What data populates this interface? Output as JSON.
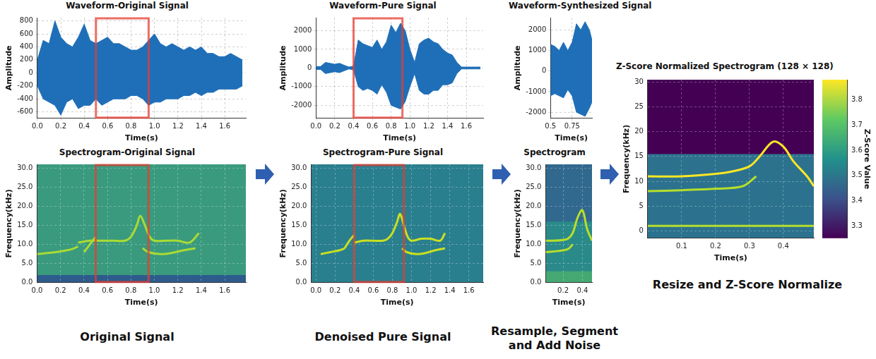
{
  "chart_data": [
    {
      "type": "waveform",
      "title": "Waveform-Original Signal",
      "xlabel": "Time(s)",
      "ylabel": "Amplitude",
      "x": [
        0,
        0.05,
        0.1,
        0.15,
        0.2,
        0.25,
        0.3,
        0.35,
        0.4,
        0.45,
        0.5,
        0.55,
        0.6,
        0.65,
        0.7,
        0.75,
        0.8,
        0.85,
        0.9,
        0.95,
        1,
        1.05,
        1.1,
        1.15,
        1.2,
        1.25,
        1.3,
        1.35,
        1.4,
        1.45,
        1.5,
        1.55,
        1.6,
        1.65,
        1.7,
        1.75
      ],
      "series": [
        {
          "values": [
            200,
            500,
            450,
            800,
            550,
            450,
            400,
            550,
            750,
            500,
            450,
            500,
            550,
            450,
            450,
            400,
            350,
            350,
            400,
            500,
            600,
            450,
            400,
            450,
            400,
            350,
            400,
            350,
            400,
            300,
            300,
            250,
            250,
            300,
            250,
            200
          ]
        },
        {
          "values": [
            -200,
            -400,
            -450,
            -500,
            -650,
            -450,
            -400,
            -550,
            -500,
            -500,
            -400,
            -500,
            -450,
            -400,
            -400,
            -400,
            -350,
            -350,
            -400,
            -500,
            -450,
            -450,
            -400,
            -400,
            -400,
            -350,
            -350,
            -300,
            -350,
            -300,
            -300,
            -250,
            -250,
            -250,
            -250,
            -200
          ]
        }
      ],
      "color": "#1f6fb8",
      "xlim": [
        0,
        1.78
      ],
      "xticks": [
        {
          "value": 0,
          "label": "0.0"
        },
        0.2,
        0.4,
        0.6,
        0.8,
        {
          "value": 1,
          "label": "1.0"
        },
        1.2,
        1.4,
        1.6
      ],
      "ylim": [
        -700,
        850
      ],
      "yticks": [
        -600,
        -400,
        -200,
        0,
        200,
        400,
        600,
        800
      ],
      "grid": true,
      "highlight": [
        0.5,
        0.95
      ]
    },
    {
      "type": "spectrogram",
      "title": "Spectrogram-Original Signal",
      "xlabel": "Time(s)",
      "ylabel": "Frequency(kHz)",
      "color": "#3a9a7e",
      "bands": [
        {
          "from": 0,
          "to": 2,
          "color": "#2d5b8c"
        }
      ],
      "series": [
        {
          "color": "#a8db34",
          "x": [
            0,
            0.1,
            0.2,
            0.3,
            0.35
          ],
          "values": [
            7.5,
            7.8,
            8.2,
            8.8,
            9.5
          ]
        },
        {
          "color": "#a8db34",
          "x": [
            0.35,
            0.45,
            0.55,
            0.65,
            0.75,
            0.8,
            0.85,
            0.88,
            0.92,
            0.96,
            1,
            1.1,
            1.2,
            1.3,
            1.38
          ],
          "values": [
            10.5,
            11,
            11,
            11,
            11,
            12,
            15,
            17.5,
            15,
            12,
            11,
            11,
            11,
            10.5,
            13
          ]
        },
        {
          "color": "#a8db34",
          "x": [
            0.4,
            0.45,
            0.5
          ],
          "values": [
            8,
            10,
            12
          ]
        },
        {
          "color": "#a8db34",
          "x": [
            0.9,
            0.95,
            1.05,
            1.15,
            1.25,
            1.35
          ],
          "values": [
            9,
            8,
            7.5,
            7.8,
            8.5,
            9
          ]
        }
      ],
      "xlim": [
        0,
        1.78
      ],
      "xticks": [
        {
          "value": 0,
          "label": "0.0"
        },
        0.2,
        0.4,
        0.6,
        0.8,
        {
          "value": 1,
          "label": "1.0"
        },
        1.2,
        1.4,
        1.6
      ],
      "ylim": [
        0,
        31
      ],
      "yticks": [
        {
          "value": 0,
          "label": "0.0"
        },
        {
          "value": 5,
          "label": "5.0"
        },
        {
          "value": 10,
          "label": "10.0"
        },
        {
          "value": 15,
          "label": "15.0"
        },
        {
          "value": 20,
          "label": "20.0"
        },
        {
          "value": 25,
          "label": "25.0"
        },
        {
          "value": 30,
          "label": "30.0"
        }
      ],
      "grid": true,
      "highlight": [
        0.5,
        0.95
      ]
    },
    {
      "type": "waveform",
      "title": "Waveform-Pure Signal",
      "xlabel": "Time(s)",
      "ylabel": "Amplitude",
      "x": [
        0,
        0.05,
        0.1,
        0.15,
        0.2,
        0.25,
        0.3,
        0.35,
        0.4,
        0.45,
        0.5,
        0.55,
        0.6,
        0.65,
        0.7,
        0.75,
        0.8,
        0.85,
        0.9,
        0.95,
        1,
        1.05,
        1.1,
        1.15,
        1.2,
        1.25,
        1.3,
        1.35,
        1.4,
        1.45,
        1.5,
        1.55,
        1.6,
        1.65,
        1.7,
        1.75
      ],
      "series": [
        {
          "values": [
            80,
            80,
            300,
            250,
            200,
            250,
            150,
            50,
            100,
            1500,
            1300,
            1200,
            1100,
            1500,
            1000,
            1400,
            2300,
            1900,
            2400,
            2000,
            1000,
            300,
            1300,
            1500,
            1600,
            1400,
            1300,
            1000,
            800,
            700,
            300,
            50,
            50,
            50,
            50,
            50
          ]
        },
        {
          "values": [
            -80,
            -80,
            -300,
            -250,
            -200,
            -250,
            -150,
            -50,
            -100,
            -1000,
            -1200,
            -1100,
            -1200,
            -1400,
            -900,
            -1300,
            -2000,
            -2100,
            -2200,
            -1800,
            -1000,
            -300,
            -1200,
            -1400,
            -1400,
            -1200,
            -1200,
            -900,
            -900,
            -800,
            -300,
            -50,
            -50,
            -50,
            -50,
            -50
          ]
        }
      ],
      "color": "#1f6fb8",
      "xlim": [
        0,
        1.78
      ],
      "xticks": [
        {
          "value": 0,
          "label": "0.0"
        },
        0.2,
        0.4,
        0.6,
        0.8,
        {
          "value": 1,
          "label": "1.0"
        },
        1.2,
        1.4,
        1.6
      ],
      "ylim": [
        -2700,
        2700
      ],
      "yticks": [
        -2000,
        -1000,
        0,
        1000,
        2000
      ],
      "grid": true,
      "highlight": [
        0.4,
        0.92
      ]
    },
    {
      "type": "spectrogram",
      "title": "Spectrogram-Pure Signal",
      "xlabel": "Time(s)",
      "ylabel": "Frequency(kHz)",
      "color": "#2a7f8e",
      "bands": [],
      "series": [
        {
          "color": "#c8e020",
          "x": [
            0.05,
            0.15,
            0.25,
            0.3
          ],
          "values": [
            7.5,
            8,
            8.5,
            9
          ]
        },
        {
          "color": "#c8e020",
          "x": [
            0.3,
            0.35,
            0.4
          ],
          "values": [
            9,
            11,
            12.5
          ]
        },
        {
          "color": "#c8e020",
          "x": [
            0.4,
            0.5,
            0.6,
            0.7,
            0.75,
            0.8,
            0.85,
            0.88,
            0.92,
            0.96,
            1,
            1.1,
            1.2,
            1.3,
            1.35
          ],
          "values": [
            10.5,
            11,
            11,
            11,
            11.5,
            13,
            16,
            18,
            15,
            12,
            11,
            11.5,
            11.5,
            11,
            13
          ]
        },
        {
          "color": "#c8e020",
          "x": [
            0.9,
            0.95,
            1.05,
            1.15,
            1.25,
            1.35
          ],
          "values": [
            9,
            8,
            7.5,
            7.8,
            8.5,
            9
          ]
        }
      ],
      "xlim": [
        -0.05,
        1.75
      ],
      "xticks": [
        {
          "value": 0,
          "label": "0.0"
        },
        0.2,
        0.4,
        0.6,
        0.8,
        {
          "value": 1,
          "label": "1.0"
        },
        1.2,
        1.4,
        1.6
      ],
      "ylim": [
        0,
        31
      ],
      "yticks": [
        {
          "value": 0,
          "label": "0.0"
        },
        {
          "value": 5,
          "label": "5.0"
        },
        {
          "value": 10,
          "label": "10.0"
        },
        {
          "value": 15,
          "label": "15.0"
        },
        {
          "value": 20,
          "label": "20.0"
        },
        {
          "value": 25,
          "label": "25.0"
        },
        {
          "value": 30,
          "label": "30.0"
        }
      ],
      "grid": true,
      "highlight": [
        0.4,
        0.92
      ]
    },
    {
      "type": "waveform",
      "title": "Waveform-Synthesized Signal",
      "xlabel": "Time(s)",
      "ylabel": "Amplitude",
      "x": [
        0.5,
        0.55,
        0.6,
        0.65,
        0.7,
        0.75,
        0.8,
        0.85,
        0.9,
        0.95,
        0.98
      ],
      "series": [
        {
          "values": [
            1300,
            1200,
            1000,
            1400,
            1000,
            1400,
            2300,
            2000,
            2400,
            2000,
            1500
          ]
        },
        {
          "values": [
            -1200,
            -1100,
            -1200,
            -1300,
            -900,
            -1200,
            -2000,
            -2100,
            -2200,
            -1800,
            -1500
          ]
        }
      ],
      "color": "#1f6fb8",
      "xlim": [
        0.5,
        0.98
      ],
      "xticks": [
        0.5,
        0.75
      ],
      "ylim": [
        -2300,
        2600
      ],
      "yticks": [
        -2000,
        -1000,
        0,
        1000,
        2000
      ],
      "grid": true
    },
    {
      "type": "spectrogram",
      "title": "Spectrogram",
      "xlabel": "Time(s)",
      "ylabel": "Frequency(kHz)",
      "color": "#2a8a8a",
      "bands": [
        {
          "from": 0,
          "to": 3,
          "color": "#45a873"
        },
        {
          "from": 16,
          "to": 31,
          "color": "#31688e"
        }
      ],
      "series": [
        {
          "color": "#b8de29",
          "x": [
            0.02,
            0.1,
            0.2,
            0.25,
            0.3,
            0.35,
            0.4,
            0.45,
            0.5
          ],
          "values": [
            11,
            11,
            11.2,
            11.5,
            13,
            17,
            19,
            14,
            11
          ]
        },
        {
          "color": "#b8de29",
          "x": [
            0.02,
            0.15,
            0.25,
            0.3
          ],
          "values": [
            8,
            8.3,
            8.8,
            10
          ]
        }
      ],
      "xlim": [
        0.02,
        0.5
      ],
      "xticks": [
        0.2,
        0.4
      ],
      "ylim": [
        0,
        31
      ],
      "yticks": [
        {
          "value": 0,
          "label": "0.0"
        },
        {
          "value": 5,
          "label": "5.0"
        },
        {
          "value": 10,
          "label": "10.0"
        },
        {
          "value": 15,
          "label": "15.0"
        },
        {
          "value": 20,
          "label": "20.0"
        },
        {
          "value": 25,
          "label": "25.0"
        },
        {
          "value": 30,
          "label": "30.0"
        }
      ],
      "grid": true
    },
    {
      "type": "spectrogram",
      "title": "Z-Score Normalized Spectrogram (128 × 128)",
      "xlabel": "Time(s)",
      "ylabel": "Frequency(kHz)",
      "color": "#2c728e",
      "bands": [
        {
          "from": 15.5,
          "to": 30.5,
          "color": "#440154"
        }
      ],
      "series": [
        {
          "color": "#fde725",
          "x": [
            0,
            0.1,
            0.2,
            0.25,
            0.3,
            0.33,
            0.37,
            0.4,
            0.43,
            0.47,
            0.49
          ],
          "values": [
            11,
            11,
            11.5,
            12,
            13,
            15,
            18,
            17,
            14,
            11,
            9
          ]
        },
        {
          "color": "#b5de2b",
          "x": [
            0,
            0.1,
            0.2,
            0.28,
            0.32
          ],
          "values": [
            8,
            8.2,
            8.5,
            9,
            11
          ]
        },
        {
          "color": "#b5de2b",
          "x": [
            0,
            0.49
          ],
          "values": [
            1,
            1
          ]
        }
      ],
      "xlim": [
        0,
        0.49
      ],
      "xticks": [
        0.1,
        0.2,
        0.3,
        0.4
      ],
      "ylim": [
        -1.5,
        30.5
      ],
      "yticks": [
        0,
        5,
        10,
        15,
        20,
        25,
        30
      ],
      "grid": true,
      "colorbar": {
        "label": "Z-Score Value",
        "range": [
          3.25,
          3.88
        ],
        "ticks": [
          3.3,
          3.4,
          3.5,
          3.6,
          3.7,
          3.8
        ]
      }
    }
  ],
  "captions": [
    "Original Signal",
    "Denoised Pure Signal",
    "Resample, Segment and Add Noise",
    "Resize and Z-Score Normalize"
  ]
}
